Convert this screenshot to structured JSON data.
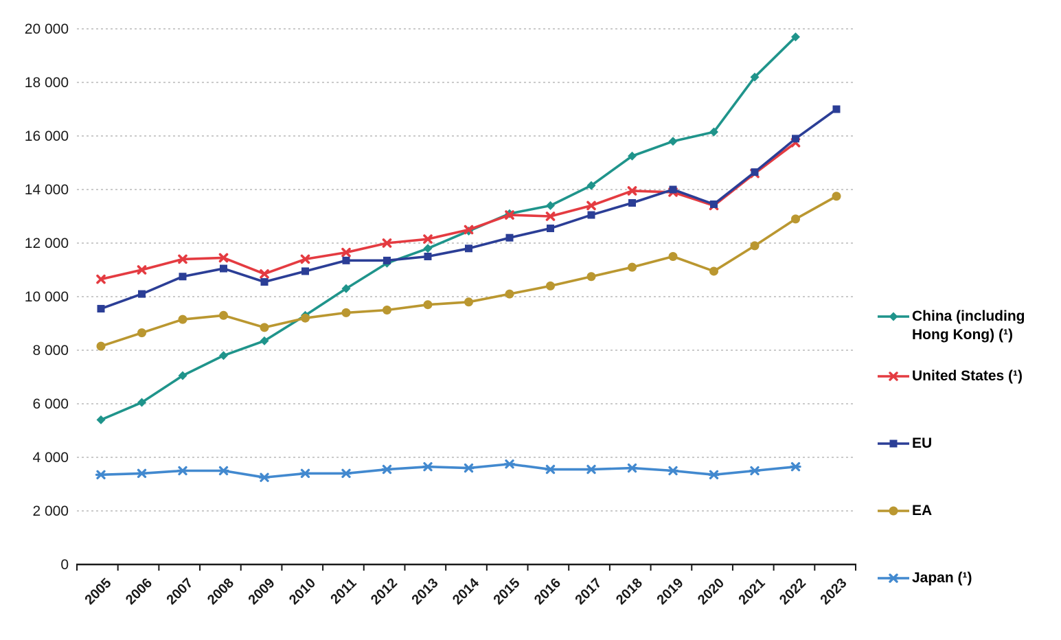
{
  "colors": {
    "grid": "#b9b9b9",
    "axis": "#1a1a1a",
    "text": "#1a1a1a",
    "background": "#ffffff"
  },
  "chart_data": {
    "type": "line",
    "title": "",
    "xlabel": "",
    "ylabel": "",
    "grid": "horizontal-dashed",
    "legend_position": "right",
    "ylim": [
      0,
      20000
    ],
    "yticks": [
      {
        "value": 0,
        "label": "0"
      },
      {
        "value": 2000,
        "label": "2 000"
      },
      {
        "value": 4000,
        "label": "4 000"
      },
      {
        "value": 6000,
        "label": "6 000"
      },
      {
        "value": 8000,
        "label": "8 000"
      },
      {
        "value": 10000,
        "label": "10 000"
      },
      {
        "value": 12000,
        "label": "12 000"
      },
      {
        "value": 14000,
        "label": "14 000"
      },
      {
        "value": 16000,
        "label": "16 000"
      },
      {
        "value": 18000,
        "label": "18 000"
      },
      {
        "value": 20000,
        "label": "20 000"
      }
    ],
    "categories": [
      "2005",
      "2006",
      "2007",
      "2008",
      "2009",
      "2010",
      "2011",
      "2012",
      "2013",
      "2014",
      "2015",
      "2016",
      "2017",
      "2018",
      "2019",
      "2020",
      "2021",
      "2022",
      "2023"
    ],
    "series": [
      {
        "name": "China (including Hong Kong) (¹)",
        "color": "#1F948B",
        "marker": "diamond",
        "values": [
          5400,
          6050,
          7050,
          7800,
          8350,
          9300,
          10300,
          11250,
          11800,
          12450,
          13100,
          13400,
          14150,
          15250,
          15800,
          16150,
          18200,
          19700,
          null
        ]
      },
      {
        "name": "United States (¹)",
        "color": "#E43B41",
        "marker": "x",
        "values": [
          10650,
          11000,
          11400,
          11450,
          10850,
          11400,
          11650,
          12000,
          12150,
          12500,
          13050,
          13000,
          13400,
          13950,
          13900,
          13400,
          14600,
          15750,
          null
        ]
      },
      {
        "name": "EU",
        "color": "#2B3E96",
        "marker": "square",
        "values": [
          9550,
          10100,
          10750,
          11050,
          10550,
          10950,
          11350,
          11350,
          11500,
          11800,
          12200,
          12550,
          13050,
          13500,
          14000,
          13450,
          14650,
          15900,
          17000
        ]
      },
      {
        "name": "EA",
        "color": "#BA9730",
        "marker": "circle",
        "values": [
          8150,
          8650,
          9150,
          9300,
          8850,
          9200,
          9400,
          9500,
          9700,
          9800,
          10100,
          10400,
          10750,
          11100,
          11500,
          10950,
          11900,
          12900,
          13750
        ]
      },
      {
        "name": "Japan (¹)",
        "color": "#4289CF",
        "marker": "star",
        "values": [
          3350,
          3400,
          3500,
          3500,
          3250,
          3400,
          3400,
          3550,
          3650,
          3600,
          3750,
          3550,
          3550,
          3600,
          3500,
          3350,
          3500,
          3650,
          null
        ]
      }
    ]
  }
}
